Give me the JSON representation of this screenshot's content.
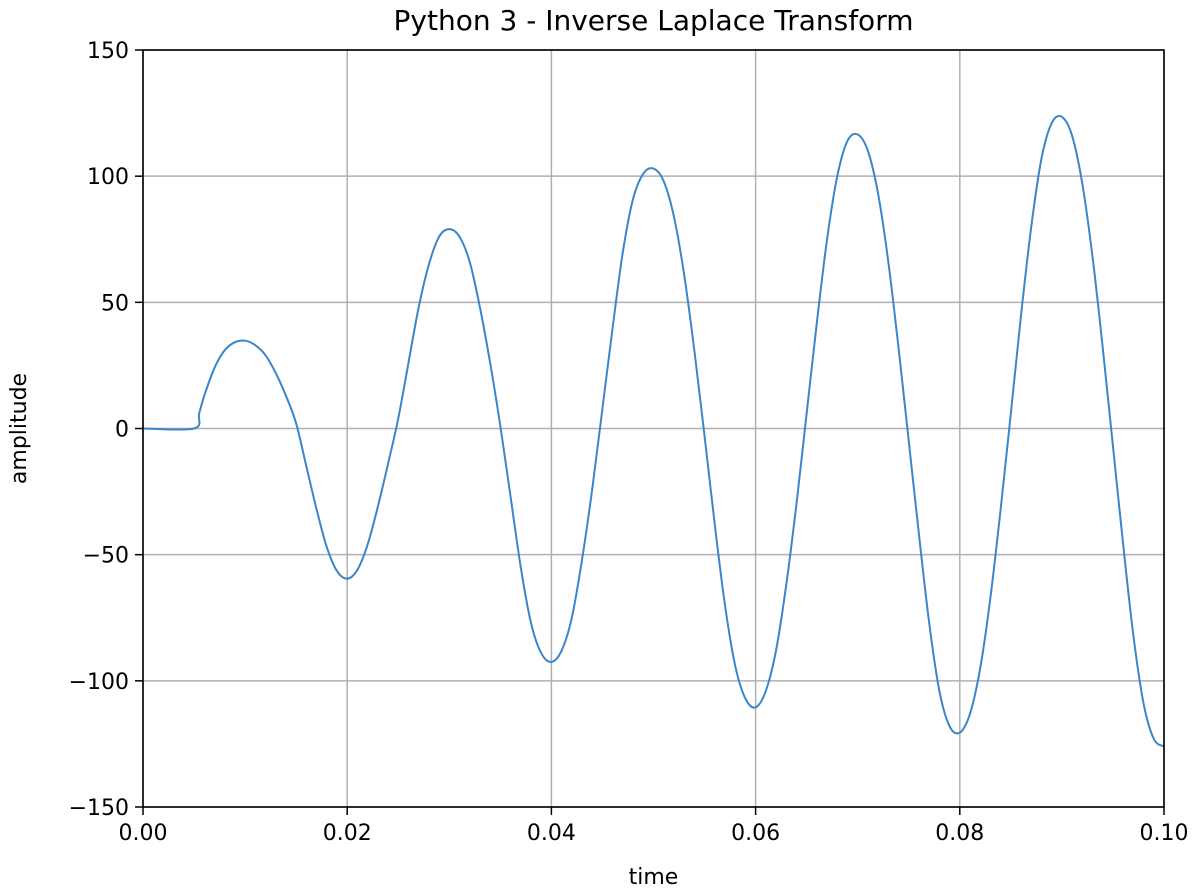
{
  "chart_data": {
    "type": "line",
    "title": "Python 3 - Inverse Laplace Transform",
    "xlabel": "time",
    "ylabel": "amplitude",
    "xlim": [
      0.0,
      0.1
    ],
    "ylim": [
      -150,
      150
    ],
    "grid": true,
    "xticks": [
      0.0,
      0.02,
      0.04,
      0.06,
      0.08,
      0.1
    ],
    "xtick_labels": [
      "0.00",
      "0.02",
      "0.04",
      "0.06",
      "0.08",
      "0.10"
    ],
    "yticks": [
      150,
      100,
      50,
      0,
      -50,
      -100,
      -150
    ],
    "ytick_labels": [
      "150",
      "100",
      "50",
      "0",
      "−50",
      "−100",
      "−150"
    ],
    "series": [
      {
        "color": "#3a86c8",
        "points": [
          [
            0.0,
            0
          ],
          [
            0.005,
            0
          ],
          [
            0.0055,
            6
          ],
          [
            0.006,
            13
          ],
          [
            0.007,
            24
          ],
          [
            0.008,
            31
          ],
          [
            0.009,
            34.2
          ],
          [
            0.01,
            34.8
          ],
          [
            0.011,
            33
          ],
          [
            0.012,
            29
          ],
          [
            0.013,
            22
          ],
          [
            0.014,
            13
          ],
          [
            0.015,
            2
          ],
          [
            0.016,
            -15
          ],
          [
            0.017,
            -32
          ],
          [
            0.018,
            -47
          ],
          [
            0.019,
            -56.5
          ],
          [
            0.02,
            -59.5
          ],
          [
            0.021,
            -56
          ],
          [
            0.022,
            -46
          ],
          [
            0.023,
            -31
          ],
          [
            0.024,
            -14
          ],
          [
            0.025,
            4
          ],
          [
            0.026,
            26
          ],
          [
            0.027,
            48
          ],
          [
            0.028,
            65
          ],
          [
            0.029,
            76
          ],
          [
            0.03,
            79
          ],
          [
            0.031,
            76
          ],
          [
            0.032,
            66
          ],
          [
            0.033,
            48
          ],
          [
            0.034,
            26
          ],
          [
            0.035,
            1
          ],
          [
            0.036,
            -27
          ],
          [
            0.037,
            -55
          ],
          [
            0.038,
            -77
          ],
          [
            0.039,
            -89
          ],
          [
            0.04,
            -92.5
          ],
          [
            0.041,
            -88
          ],
          [
            0.042,
            -75
          ],
          [
            0.043,
            -52
          ],
          [
            0.044,
            -24
          ],
          [
            0.045,
            8
          ],
          [
            0.046,
            40
          ],
          [
            0.047,
            70
          ],
          [
            0.048,
            91
          ],
          [
            0.049,
            101
          ],
          [
            0.05,
            103
          ],
          [
            0.051,
            98
          ],
          [
            0.052,
            84
          ],
          [
            0.053,
            61
          ],
          [
            0.054,
            31
          ],
          [
            0.055,
            -3
          ],
          [
            0.056,
            -38
          ],
          [
            0.057,
            -70
          ],
          [
            0.058,
            -94
          ],
          [
            0.059,
            -107
          ],
          [
            0.06,
            -110.5
          ],
          [
            0.061,
            -104
          ],
          [
            0.062,
            -88
          ],
          [
            0.063,
            -62
          ],
          [
            0.064,
            -30
          ],
          [
            0.065,
            6
          ],
          [
            0.066,
            42
          ],
          [
            0.067,
            75
          ],
          [
            0.068,
            100
          ],
          [
            0.069,
            114
          ],
          [
            0.07,
            116.5
          ],
          [
            0.071,
            110
          ],
          [
            0.072,
            93
          ],
          [
            0.073,
            66
          ],
          [
            0.074,
            32
          ],
          [
            0.075,
            -5
          ],
          [
            0.076,
            -42
          ],
          [
            0.077,
            -77
          ],
          [
            0.078,
            -104
          ],
          [
            0.079,
            -118
          ],
          [
            0.08,
            -120.5
          ],
          [
            0.081,
            -113
          ],
          [
            0.082,
            -95
          ],
          [
            0.083,
            -67
          ],
          [
            0.084,
            -32
          ],
          [
            0.085,
            6
          ],
          [
            0.086,
            45
          ],
          [
            0.087,
            80
          ],
          [
            0.088,
            107
          ],
          [
            0.089,
            121
          ],
          [
            0.09,
            123.5
          ],
          [
            0.091,
            116
          ],
          [
            0.092,
            97
          ],
          [
            0.093,
            68
          ],
          [
            0.094,
            32
          ],
          [
            0.095,
            -7
          ],
          [
            0.096,
            -46
          ],
          [
            0.097,
            -82
          ],
          [
            0.098,
            -109
          ],
          [
            0.099,
            -123
          ],
          [
            0.1,
            -126
          ]
        ]
      }
    ]
  }
}
